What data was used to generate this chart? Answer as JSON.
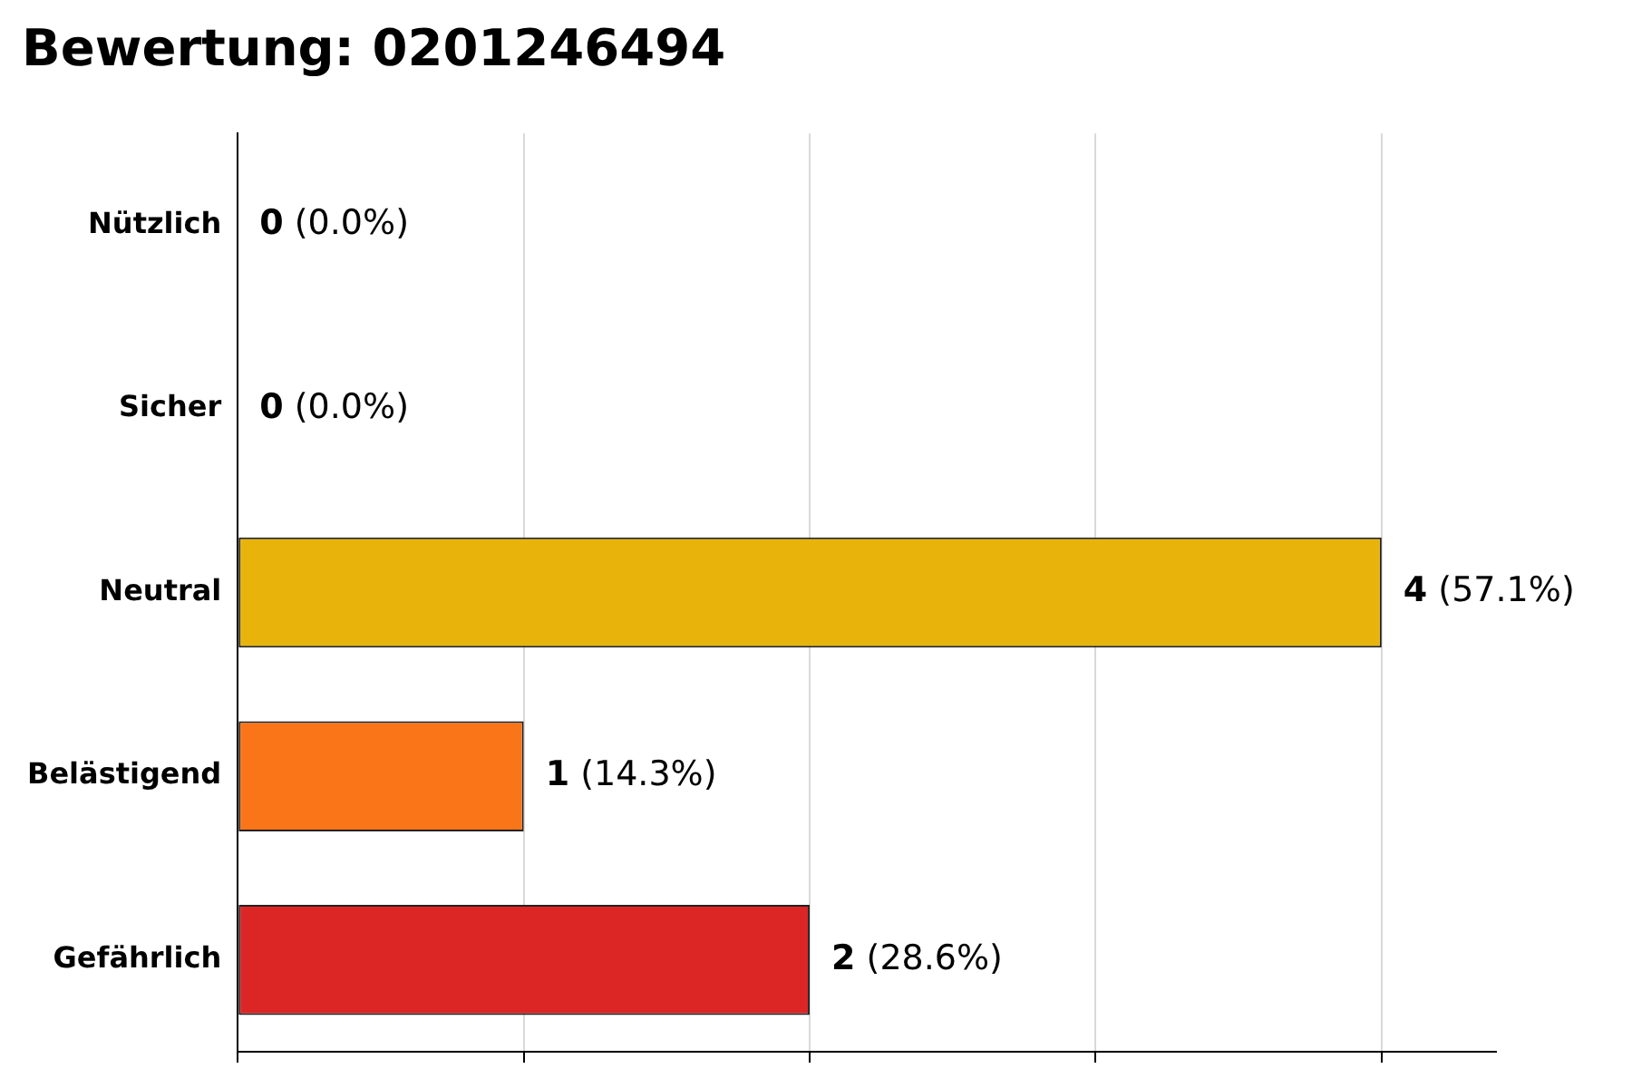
{
  "chart_data": {
    "type": "bar",
    "orientation": "horizontal",
    "title": "Bewertung: 0201246494",
    "categories": [
      "Nützlich",
      "Sicher",
      "Neutral",
      "Belästigend",
      "Gefährlich"
    ],
    "values": [
      0,
      0,
      4,
      1,
      2
    ],
    "colors": [
      "#2ca02c",
      "#8bc34a",
      "#e8b40b",
      "#f97518",
      "#dc2626"
    ],
    "value_labels": [
      "0 (0.0%)",
      "0 (0.0%)",
      "4 (57.1%)",
      "1 (14.3%)",
      "2 (28.6%)"
    ],
    "xlim": [
      0,
      4.4
    ],
    "xticks": [
      {
        "value": 0,
        "label": null
      },
      {
        "value": 1,
        "label": null
      },
      {
        "value": 2,
        "label": null
      },
      {
        "value": 3,
        "label": null
      },
      {
        "value": 4,
        "label": null
      }
    ],
    "tick_labels": "y",
    "grid": "x",
    "legend": false
  }
}
